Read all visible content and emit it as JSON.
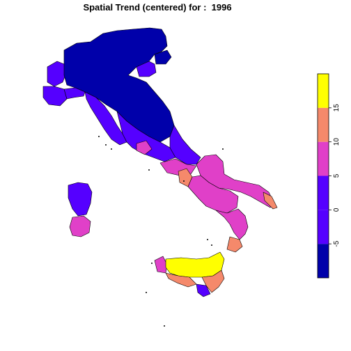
{
  "title": "Spatial Trend (centered) for :  1996",
  "legend": {
    "bins": [
      {
        "from": -10,
        "to": -5,
        "color": "#0000AA"
      },
      {
        "from": -5,
        "to": 0,
        "color": "#5500FF"
      },
      {
        "from": 0,
        "to": 5,
        "color": "#5500FF"
      },
      {
        "from": 5,
        "to": 10,
        "color": "#E040C8"
      },
      {
        "from": 10,
        "to": 15,
        "color": "#F5896B"
      },
      {
        "from": 15,
        "to": 20,
        "color": "#FFFF00"
      }
    ],
    "ticks": [
      "-5",
      "0",
      "5",
      "10",
      "15"
    ]
  },
  "palette": {
    "dark_blue": "#0000AA",
    "violet_blue": "#5500FF",
    "magenta": "#E040C8",
    "salmon": "#F5896B",
    "yellow": "#FFFF00"
  }
}
